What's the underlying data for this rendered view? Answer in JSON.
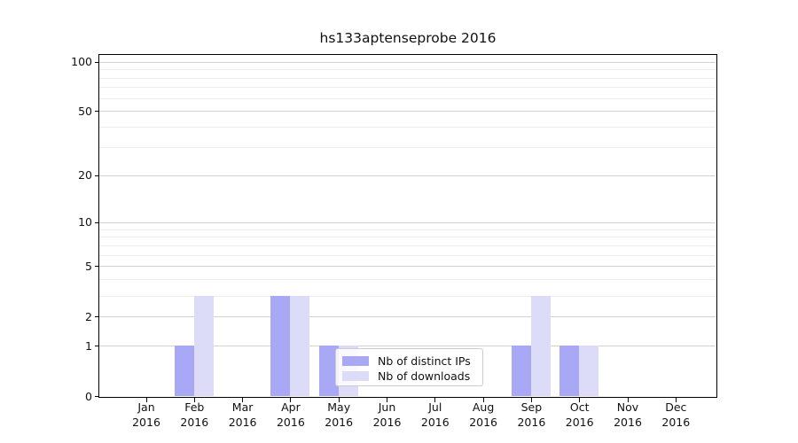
{
  "chart_data": {
    "type": "bar",
    "title": "hs133aptenseprobe 2016",
    "x_months": [
      "Jan",
      "Feb",
      "Mar",
      "Apr",
      "May",
      "Jun",
      "Jul",
      "Aug",
      "Sep",
      "Oct",
      "Nov",
      "Dec"
    ],
    "x_year_label": "2016",
    "series": [
      {
        "name": "Nb of distinct IPs",
        "color": "#a8a8f5",
        "values": [
          0,
          1,
          0,
          3,
          1,
          0,
          0,
          0,
          1,
          1,
          0,
          0
        ]
      },
      {
        "name": "Nb of downloads",
        "color": "#dcdcf9",
        "values": [
          0,
          3,
          0,
          3,
          1,
          0,
          0,
          0,
          3,
          1,
          0,
          0
        ]
      }
    ],
    "y_scale": "log10(1+value)",
    "y_major_ticks": [
      0,
      1,
      2,
      5,
      10,
      20,
      50,
      100
    ],
    "y_minor_ticks": [
      3,
      4,
      6,
      7,
      8,
      9,
      30,
      40,
      60,
      70,
      80,
      90
    ],
    "ylim": [
      0,
      112
    ],
    "grid": "horizontal",
    "legend_position": "lower-center",
    "colors": {
      "grid_major": "#d2d2d2",
      "grid_minor": "#ededed",
      "axis": "#000000",
      "background": "#ffffff",
      "text": "#111111"
    }
  }
}
